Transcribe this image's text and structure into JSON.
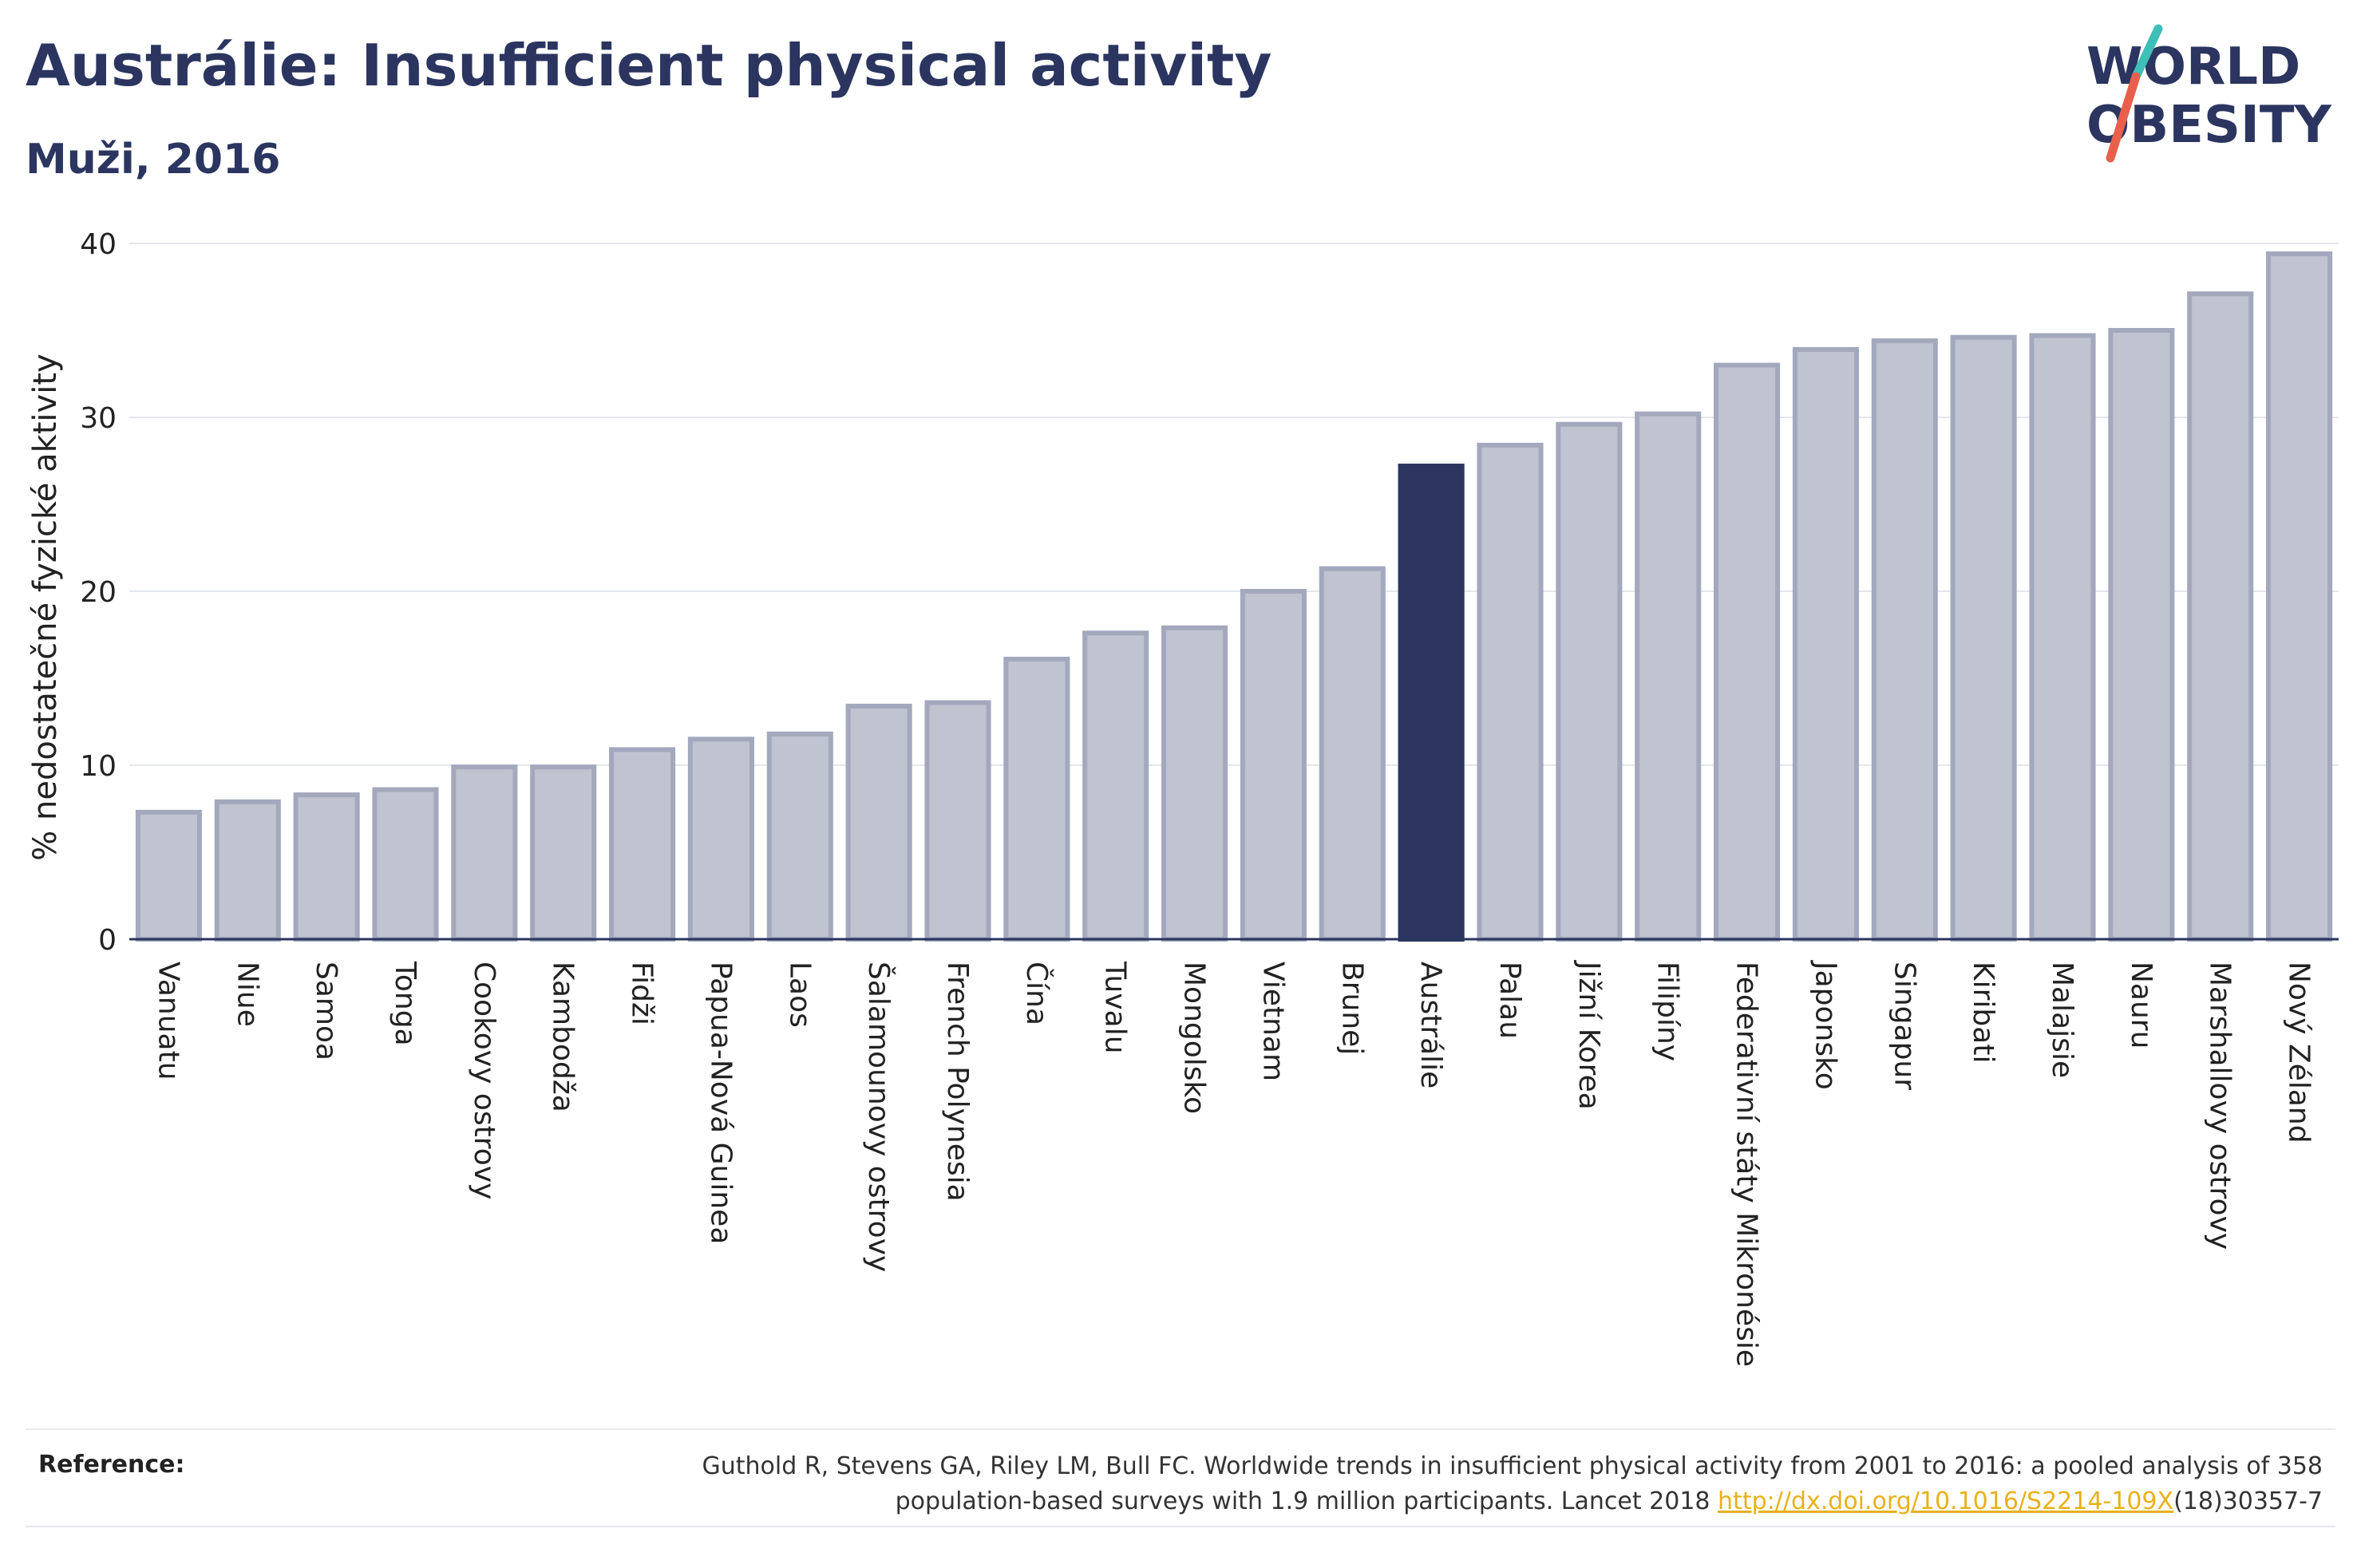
{
  "header": {
    "title": "Austrálie: Insufficient physical activity",
    "subtitle": "Muži, 2016"
  },
  "logo": {
    "line1": "WORLD",
    "line2": "OBESITY",
    "colors": {
      "text": "#2b3560",
      "slash_red": "#e8604c",
      "slash_teal": "#3ebfb8"
    }
  },
  "chart_data": {
    "type": "bar",
    "ylabel": "% nedostatečné fyzické aktivity",
    "xlabel": "",
    "ylim": [
      0,
      40
    ],
    "yticks": [
      0,
      10,
      20,
      30,
      40
    ],
    "grid": true,
    "highlight": "Austrálie",
    "colors": {
      "bar": "#c0c3d0",
      "bar_edge": "#a3a8bd",
      "highlight": "#2b3560"
    },
    "categories": [
      "Vanuatu",
      "Niue",
      "Samoa",
      "Tonga",
      "Cookovy ostrovy",
      "Kambodža",
      "Fidži",
      "Papua-Nová Guinea",
      "Laos",
      "Šalamounovy ostrovy",
      "French Polynesia",
      "Čína",
      "Tuvalu",
      "Mongolsko",
      "Vietnam",
      "Brunej",
      "Austrálie",
      "Palau",
      "Jižní Korea",
      "Filipíny",
      "Federativní státy Mikronésie",
      "Japonsko",
      "Singapur",
      "Kiribati",
      "Malajsie",
      "Nauru",
      "Marshallovy ostrovy",
      "Nový Zéland"
    ],
    "values": [
      7.3,
      7.9,
      8.3,
      8.6,
      9.9,
      9.9,
      10.9,
      11.5,
      11.8,
      13.4,
      13.6,
      16.1,
      17.6,
      17.9,
      20.0,
      21.3,
      27.2,
      28.4,
      29.6,
      30.2,
      33.0,
      33.9,
      34.4,
      34.6,
      34.7,
      35.0,
      37.1,
      39.4
    ]
  },
  "reference": {
    "label": "Reference:",
    "text_before": "Guthold R, Stevens GA, Riley LM, Bull FC. Worldwide trends in insufficient physical activity from 2001 to 2016: a pooled analysis of 358 population-based surveys with 1.9 million participants. Lancet 2018 ",
    "link": "http://dx.doi.org/10.1016/S2214-109X",
    "text_after": "(18)30357-7"
  }
}
